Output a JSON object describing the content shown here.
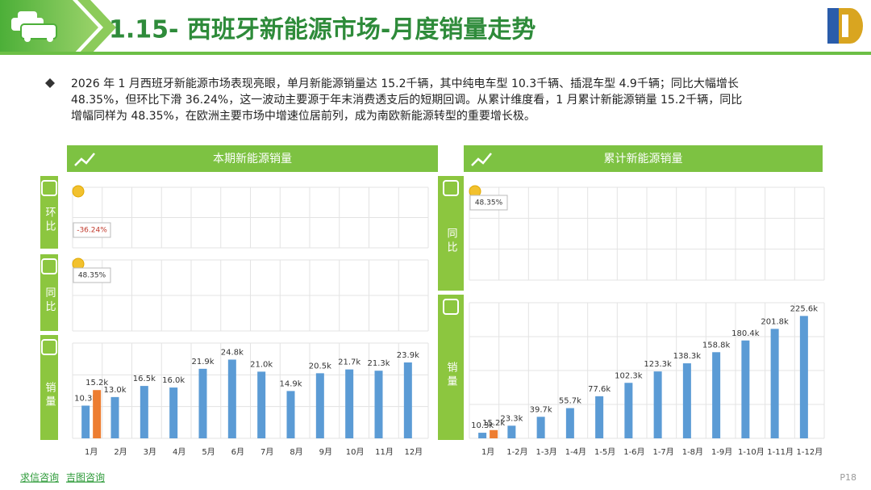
{
  "header": {
    "title": "1.15- 西班牙新能源市场-月度销量走势"
  },
  "bullet": {
    "lines": [
      "2026 年 1 月西班牙新能源市场表现亮眼，单月新能源销量达 15.2千辆，其中纯电车型 10.3千辆、插混车型 4.9千辆；同比大幅增长",
      "48.35%，但环比下滑 36.24%，这一波动主要源于年末消费透支后的短期回调。从累计维度看，1 月累计新能源销量 15.2千辆，同比",
      "增幅同样为 48.35%，在欧洲主要市场中增速位居前列，成为南欧新能源转型的重要增长极。"
    ]
  },
  "chart_data": [
    {
      "type": "bar",
      "title": "本期新能源销量",
      "panels": [
        {
          "label": "环比",
          "annotation": "-36.24%",
          "annotation_color": "#c0392b"
        },
        {
          "label": "同比",
          "annotation": "48.35%",
          "annotation_color": "#333333"
        },
        {
          "label": "销量"
        }
      ],
      "categories": [
        "1月",
        "2月",
        "3月",
        "4月",
        "5月",
        "6月",
        "7月",
        "8月",
        "9月",
        "10月",
        "11月",
        "12月"
      ],
      "ylim": [
        0,
        30
      ],
      "series": [
        {
          "color": "#5b9bd5",
          "values": [
            10.3,
            13.0,
            16.5,
            16.0,
            21.9,
            24.8,
            21.0,
            14.9,
            20.5,
            21.7,
            21.3,
            23.9
          ],
          "value_labels": [
            "10.3k",
            "13.0k",
            "16.5k",
            "16.0k",
            "21.9k",
            "24.8k",
            "21.0k",
            "14.9k",
            "20.5k",
            "21.7k",
            "21.3k",
            "23.9k"
          ]
        },
        {
          "color": "#ed7d31",
          "values": [
            15.2,
            null,
            null,
            null,
            null,
            null,
            null,
            null,
            null,
            null,
            null,
            null
          ],
          "value_labels": [
            "15.2k",
            null,
            null,
            null,
            null,
            null,
            null,
            null,
            null,
            null,
            null,
            null
          ]
        }
      ]
    },
    {
      "type": "bar",
      "title": "累计新能源销量",
      "panels": [
        {
          "label": "同比",
          "annotation": "48.35%",
          "annotation_color": "#333333"
        },
        {
          "label": "销量"
        }
      ],
      "categories": [
        "1月",
        "1-2月",
        "1-3月",
        "1-4月",
        "1-5月",
        "1-6月",
        "1-7月",
        "1-8月",
        "1-9月",
        "1-10月",
        "1-11月",
        "1-12月"
      ],
      "ylim": [
        0,
        250
      ],
      "series": [
        {
          "color": "#5b9bd5",
          "values": [
            10.3,
            23.3,
            39.7,
            55.7,
            77.6,
            102.3,
            123.3,
            138.3,
            158.8,
            180.4,
            201.8,
            225.6
          ],
          "value_labels": [
            "10.3k",
            "23.3k",
            "39.7k",
            "55.7k",
            "77.6k",
            "102.3k",
            "123.3k",
            "138.3k",
            "158.8k",
            "180.4k",
            "201.8k",
            "225.6k"
          ]
        },
        {
          "color": "#ed7d31",
          "values": [
            15.2,
            null,
            null,
            null,
            null,
            null,
            null,
            null,
            null,
            null,
            null,
            null
          ],
          "value_labels": [
            "15.2k",
            null,
            null,
            null,
            null,
            null,
            null,
            null,
            null,
            null,
            null,
            null
          ]
        }
      ]
    }
  ],
  "footer": {
    "links": [
      "求信咨询",
      "吉图咨询"
    ],
    "page": "P18"
  }
}
